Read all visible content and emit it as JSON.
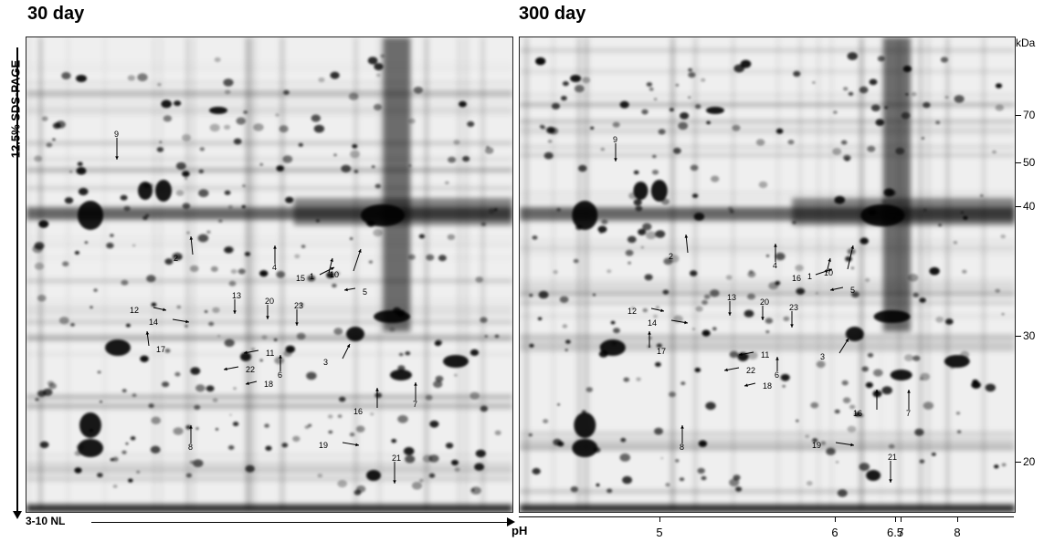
{
  "panels": [
    {
      "id": "left",
      "title": "30 day",
      "labels": [
        {
          "text": "9"
        },
        {
          "text": "2"
        },
        {
          "text": "4"
        },
        {
          "text": "15"
        },
        {
          "text": "1"
        },
        {
          "text": "10"
        },
        {
          "text": "5"
        },
        {
          "text": "12"
        },
        {
          "text": "13"
        },
        {
          "text": "20"
        },
        {
          "text": "23"
        },
        {
          "text": "14"
        },
        {
          "text": "17"
        },
        {
          "text": "11"
        },
        {
          "text": "22"
        },
        {
          "text": "6"
        },
        {
          "text": "3"
        },
        {
          "text": "18"
        },
        {
          "text": "7"
        },
        {
          "text": "16"
        },
        {
          "text": "8"
        },
        {
          "text": "19"
        },
        {
          "text": "21"
        }
      ]
    },
    {
      "id": "right",
      "title": "300 day",
      "labels": [
        {
          "text": "9"
        },
        {
          "text": "2"
        },
        {
          "text": "4"
        },
        {
          "text": "16"
        },
        {
          "text": "1"
        },
        {
          "text": "10"
        },
        {
          "text": "5"
        },
        {
          "text": "12"
        },
        {
          "text": "13"
        },
        {
          "text": "20"
        },
        {
          "text": "23"
        },
        {
          "text": "14"
        },
        {
          "text": "17"
        },
        {
          "text": "11"
        },
        {
          "text": "22"
        },
        {
          "text": "6"
        },
        {
          "text": "3"
        },
        {
          "text": "18"
        },
        {
          "text": "7"
        },
        {
          "text": "16"
        },
        {
          "text": "8"
        },
        {
          "text": "19"
        },
        {
          "text": "21"
        }
      ]
    }
  ],
  "left_axis_label": "12.5% SDS-PAGE",
  "bottom_left_label": "3-10 NL",
  "ph_axis": {
    "label": "pH",
    "ticks": [
      {
        "label": "5"
      },
      {
        "label": "6"
      },
      {
        "label": "6.5"
      },
      {
        "label": "7"
      },
      {
        "label": "8"
      }
    ]
  },
  "kda_axis": {
    "unit": "kDa",
    "markers": [
      {
        "label": "70"
      },
      {
        "label": "50"
      },
      {
        "label": "40"
      },
      {
        "label": "30"
      },
      {
        "label": "20"
      }
    ]
  }
}
